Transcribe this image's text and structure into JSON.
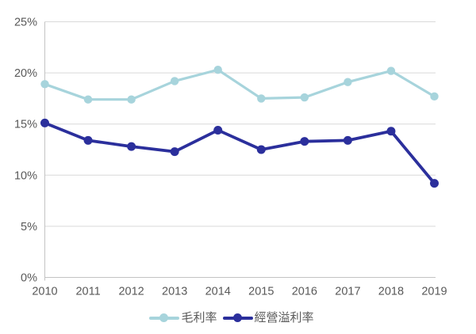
{
  "chart_data": {
    "type": "line",
    "categories": [
      "2010",
      "2011",
      "2012",
      "2013",
      "2014",
      "2015",
      "2016",
      "2017",
      "2018",
      "2019"
    ],
    "series": [
      {
        "name": "毛利率",
        "color": "#a7d4dc",
        "values": [
          18.9,
          17.4,
          17.4,
          19.2,
          20.3,
          17.5,
          17.6,
          19.1,
          20.2,
          17.7
        ]
      },
      {
        "name": "經營溢利率",
        "color": "#2b2f9c",
        "values": [
          15.1,
          13.4,
          12.8,
          12.3,
          14.4,
          12.5,
          13.3,
          13.4,
          14.3,
          9.2
        ]
      }
    ],
    "title": "",
    "xlabel": "",
    "ylabel": "",
    "ylim": [
      0,
      25
    ],
    "yticks": [
      "0%",
      "5%",
      "10%",
      "15%",
      "20%",
      "25%"
    ],
    "grid": true,
    "legend_position": "bottom"
  },
  "style": {
    "grid_color": "#d9d9d9",
    "axis_color": "#c3c3c3",
    "label_color": "#595959",
    "background": "#ffffff"
  }
}
